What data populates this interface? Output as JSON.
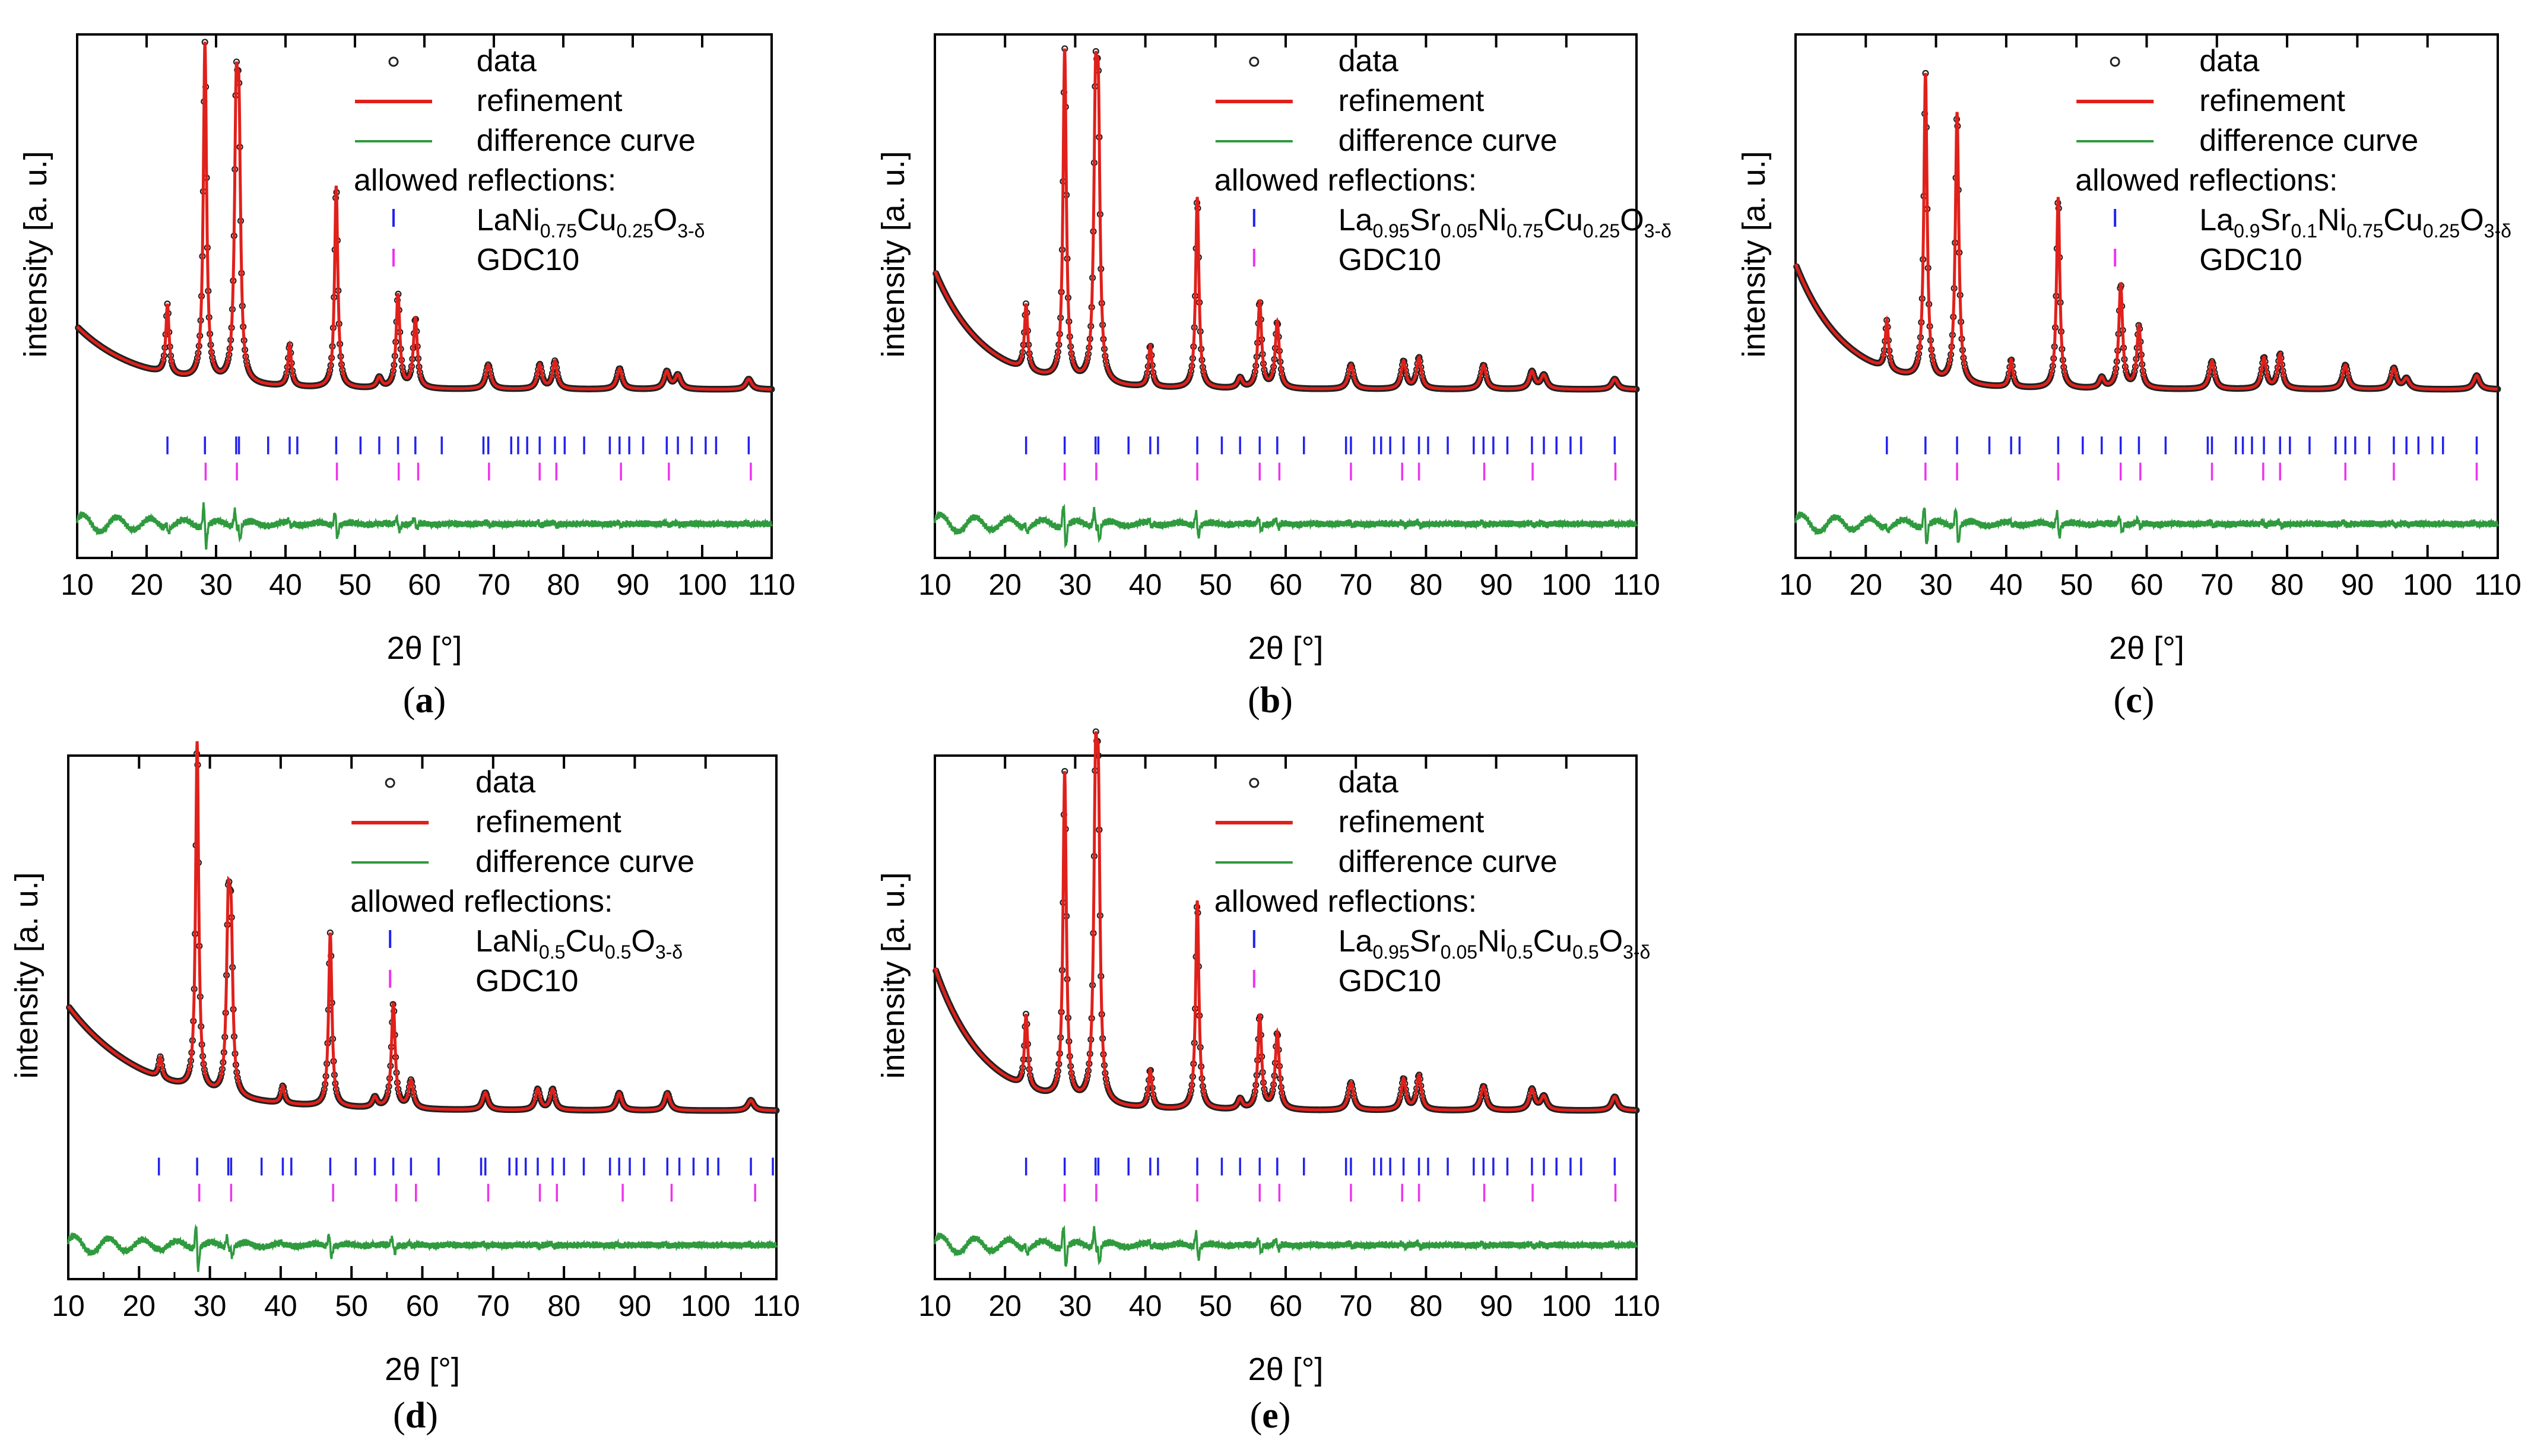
{
  "colors": {
    "data": "#222222",
    "refinement": "#e0201b",
    "difference": "#2f9a3e",
    "phase_main": "#2222ee",
    "phase_gdc": "#ee33ee",
    "axis": "#000000"
  },
  "common": {
    "xlabel": "2θ [°]",
    "ylabel": "intensity [a. u.]",
    "legend": {
      "data": "data",
      "refinement": "refinement",
      "difference": "difference curve",
      "allowed": "allowed reflections:",
      "gdc": "GDC10"
    },
    "xlim": [
      10,
      110
    ],
    "xticks": [
      10,
      20,
      30,
      40,
      50,
      60,
      70,
      80,
      90,
      100,
      110
    ],
    "gdc_positions": [
      28.5,
      33.0,
      47.4,
      56.3,
      59.1,
      69.3,
      76.6,
      79.0,
      88.3,
      95.2,
      107.0
    ]
  },
  "chart_data": [
    {
      "id": "a",
      "type": "line",
      "label_text": "(a)",
      "label_letter": "a",
      "formula": [
        [
          "LaNi",
          ""
        ],
        [
          "0.75",
          "sub"
        ],
        [
          "Cu",
          ""
        ],
        [
          "0.25",
          "sub"
        ],
        [
          "O",
          ""
        ],
        [
          "3-δ",
          "sub"
        ]
      ],
      "background": {
        "start": 0.22,
        "end": 0.04,
        "decay": 9
      },
      "peaks": [
        [
          23.0,
          0.2,
          0.28
        ],
        [
          28.4,
          0.97,
          0.28
        ],
        [
          32.9,
          0.7,
          0.3
        ],
        [
          33.3,
          0.62,
          0.28
        ],
        [
          40.6,
          0.12,
          0.3
        ],
        [
          47.3,
          0.58,
          0.28
        ],
        [
          53.5,
          0.03,
          0.4
        ],
        [
          56.2,
          0.27,
          0.32
        ],
        [
          58.7,
          0.2,
          0.35
        ],
        [
          69.2,
          0.07,
          0.45
        ],
        [
          76.6,
          0.07,
          0.4
        ],
        [
          78.8,
          0.08,
          0.4
        ],
        [
          88.1,
          0.06,
          0.45
        ],
        [
          94.9,
          0.05,
          0.45
        ],
        [
          96.5,
          0.04,
          0.5
        ],
        [
          106.7,
          0.03,
          0.5
        ]
      ],
      "phase_positions": [
        23.0,
        28.4,
        32.9,
        33.3,
        37.5,
        40.6,
        41.7,
        47.3,
        50.8,
        53.5,
        56.2,
        58.7,
        62.5,
        68.5,
        69.2,
        72.5,
        73.5,
        74.8,
        76.6,
        78.8,
        80.2,
        83.0,
        86.7,
        88.1,
        89.5,
        91.5,
        94.9,
        96.5,
        98.5,
        100.5,
        102.0,
        106.7
      ]
    },
    {
      "id": "b",
      "type": "line",
      "label_text": "(b)",
      "label_letter": "b",
      "formula": [
        [
          "La",
          ""
        ],
        [
          "0.95",
          "sub"
        ],
        [
          "Sr",
          ""
        ],
        [
          "0.05",
          "sub"
        ],
        [
          "Ni",
          ""
        ],
        [
          "0.75",
          "sub"
        ],
        [
          "Cu",
          ""
        ],
        [
          "0.25",
          "sub"
        ],
        [
          "O",
          ""
        ],
        [
          "3-δ",
          "sub"
        ]
      ],
      "background": {
        "start": 0.38,
        "end": 0.04,
        "decay": 7
      },
      "peaks": [
        [
          23.0,
          0.19,
          0.28
        ],
        [
          28.5,
          0.95,
          0.28
        ],
        [
          32.9,
          0.72,
          0.3
        ],
        [
          33.3,
          0.65,
          0.28
        ],
        [
          40.7,
          0.12,
          0.3
        ],
        [
          47.4,
          0.55,
          0.28
        ],
        [
          53.5,
          0.03,
          0.4
        ],
        [
          56.3,
          0.25,
          0.32
        ],
        [
          58.8,
          0.19,
          0.35
        ],
        [
          69.3,
          0.07,
          0.45
        ],
        [
          76.8,
          0.08,
          0.4
        ],
        [
          79.0,
          0.09,
          0.4
        ],
        [
          88.2,
          0.07,
          0.45
        ],
        [
          95.1,
          0.05,
          0.45
        ],
        [
          96.8,
          0.04,
          0.5
        ],
        [
          106.9,
          0.03,
          0.5
        ]
      ],
      "phase_positions": [
        23.0,
        28.5,
        32.9,
        33.3,
        37.6,
        40.7,
        41.8,
        47.4,
        50.9,
        53.5,
        56.3,
        58.8,
        62.6,
        68.6,
        69.3,
        72.6,
        73.6,
        74.9,
        76.8,
        79.0,
        80.3,
        83.1,
        86.8,
        88.2,
        89.6,
        91.6,
        95.1,
        96.8,
        98.6,
        100.6,
        102.1,
        106.9
      ]
    },
    {
      "id": "c",
      "type": "line",
      "label_text": "(c)",
      "label_letter": "c",
      "formula": [
        [
          "La",
          ""
        ],
        [
          "0.9",
          "sub"
        ],
        [
          "Sr",
          ""
        ],
        [
          "0.1",
          "sub"
        ],
        [
          "Ni",
          ""
        ],
        [
          "0.75",
          "sub"
        ],
        [
          "Cu",
          ""
        ],
        [
          "0.25",
          "sub"
        ],
        [
          "O",
          ""
        ],
        [
          "3-δ",
          "sub"
        ]
      ],
      "background": {
        "start": 0.4,
        "end": 0.04,
        "decay": 7
      },
      "peaks": [
        [
          23.0,
          0.14,
          0.28
        ],
        [
          28.5,
          0.88,
          0.28
        ],
        [
          33.0,
          0.78,
          0.3
        ],
        [
          40.7,
          0.08,
          0.3
        ],
        [
          47.4,
          0.55,
          0.28
        ],
        [
          53.6,
          0.03,
          0.4
        ],
        [
          56.3,
          0.3,
          0.32
        ],
        [
          58.9,
          0.18,
          0.35
        ],
        [
          69.3,
          0.08,
          0.45
        ],
        [
          76.7,
          0.09,
          0.4
        ],
        [
          79.0,
          0.1,
          0.4
        ],
        [
          88.3,
          0.07,
          0.45
        ],
        [
          95.2,
          0.06,
          0.45
        ],
        [
          97.0,
          0.03,
          0.5
        ],
        [
          107.0,
          0.04,
          0.5
        ]
      ],
      "phase_positions": [
        23.0,
        28.5,
        33.0,
        37.6,
        40.7,
        41.9,
        47.4,
        50.9,
        53.6,
        56.3,
        58.9,
        62.7,
        68.7,
        69.3,
        72.7,
        73.7,
        75.0,
        76.7,
        79.0,
        80.4,
        83.2,
        86.9,
        88.3,
        89.7,
        91.7,
        95.2,
        97.0,
        98.7,
        100.7,
        102.2,
        107.0
      ]
    },
    {
      "id": "d",
      "type": "line",
      "label_text": "(d)",
      "label_letter": "d",
      "formula": [
        [
          "LaNi",
          ""
        ],
        [
          "0.5",
          "sub"
        ],
        [
          "Cu",
          ""
        ],
        [
          "0.5",
          "sub"
        ],
        [
          "O",
          ""
        ],
        [
          "3-δ",
          "sub"
        ]
      ],
      "background": {
        "start": 0.34,
        "end": 0.04,
        "decay": 11
      },
      "peaks": [
        [
          23.0,
          0.06,
          0.28
        ],
        [
          28.2,
          1.0,
          0.26
        ],
        [
          32.6,
          0.48,
          0.3
        ],
        [
          33.0,
          0.4,
          0.28
        ],
        [
          40.3,
          0.05,
          0.3
        ],
        [
          47.0,
          0.5,
          0.28
        ],
        [
          53.3,
          0.03,
          0.4
        ],
        [
          55.9,
          0.3,
          0.32
        ],
        [
          58.4,
          0.08,
          0.4
        ],
        [
          68.9,
          0.05,
          0.45
        ],
        [
          76.3,
          0.06,
          0.4
        ],
        [
          78.4,
          0.06,
          0.4
        ],
        [
          87.8,
          0.05,
          0.45
        ],
        [
          94.6,
          0.05,
          0.45
        ],
        [
          106.4,
          0.03,
          0.5
        ]
      ],
      "phase_positions": [
        22.8,
        28.2,
        32.6,
        33.0,
        37.3,
        40.3,
        41.5,
        47.0,
        50.6,
        53.3,
        55.9,
        58.4,
        62.3,
        68.3,
        68.9,
        72.3,
        73.3,
        74.6,
        76.3,
        78.4,
        80.0,
        82.8,
        86.5,
        87.8,
        89.3,
        91.3,
        94.6,
        96.3,
        98.3,
        100.3,
        101.8,
        106.4,
        109.5
      ]
    },
    {
      "id": "e",
      "type": "line",
      "label_text": "(e)",
      "label_letter": "e",
      "formula": [
        [
          "La",
          ""
        ],
        [
          "0.95",
          "sub"
        ],
        [
          "Sr",
          ""
        ],
        [
          "0.05",
          "sub"
        ],
        [
          "Ni",
          ""
        ],
        [
          "0.5",
          "sub"
        ],
        [
          "Cu",
          ""
        ],
        [
          "0.5",
          "sub"
        ],
        [
          "O",
          ""
        ],
        [
          "3-δ",
          "sub"
        ]
      ],
      "background": {
        "start": 0.45,
        "end": 0.04,
        "decay": 7
      },
      "peaks": [
        [
          23.0,
          0.21,
          0.28
        ],
        [
          28.5,
          0.94,
          0.28
        ],
        [
          32.9,
          0.81,
          0.3
        ],
        [
          33.3,
          0.72,
          0.28
        ],
        [
          40.7,
          0.11,
          0.3
        ],
        [
          47.4,
          0.6,
          0.28
        ],
        [
          53.5,
          0.03,
          0.4
        ],
        [
          56.3,
          0.27,
          0.32
        ],
        [
          58.8,
          0.22,
          0.35
        ],
        [
          69.3,
          0.08,
          0.45
        ],
        [
          76.8,
          0.09,
          0.4
        ],
        [
          79.0,
          0.1,
          0.4
        ],
        [
          88.2,
          0.07,
          0.45
        ],
        [
          95.1,
          0.06,
          0.45
        ],
        [
          96.8,
          0.04,
          0.5
        ],
        [
          106.9,
          0.04,
          0.5
        ]
      ],
      "phase_positions": [
        23.0,
        28.5,
        32.9,
        33.3,
        37.6,
        40.7,
        41.8,
        47.4,
        50.9,
        53.5,
        56.3,
        58.8,
        62.6,
        68.6,
        69.3,
        72.6,
        73.6,
        74.9,
        76.8,
        79.0,
        80.3,
        83.1,
        86.8,
        88.2,
        89.6,
        91.6,
        95.1,
        96.8,
        98.6,
        100.6,
        102.1,
        106.9
      ]
    }
  ]
}
